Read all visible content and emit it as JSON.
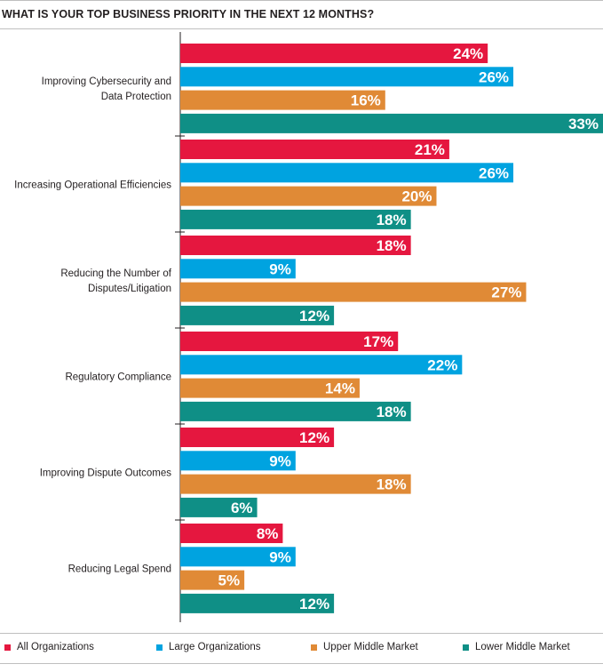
{
  "chart_data": {
    "type": "bar",
    "orientation": "horizontal",
    "title": "WHAT IS YOUR TOP BUSINESS PRIORITY IN THE NEXT 12 MONTHS?",
    "categories": [
      [
        "Improving Cybersecurity and",
        "Data Protection"
      ],
      [
        "Increasing Operational Efficiencies"
      ],
      [
        "Reducing the Number of",
        "Disputes/Litigation"
      ],
      [
        "Regulatory Compliance"
      ],
      [
        "Improving Dispute Outcomes"
      ],
      [
        "Reducing Legal Spend"
      ]
    ],
    "series": [
      {
        "name": "All Organizations",
        "color": "#e5173f",
        "values": [
          24,
          21,
          18,
          17,
          12,
          8
        ]
      },
      {
        "name": "Large Organizations",
        "color": "#00a3e0",
        "values": [
          26,
          26,
          9,
          22,
          9,
          9
        ]
      },
      {
        "name": "Upper Middle Market",
        "color": "#e08a36",
        "values": [
          16,
          20,
          27,
          14,
          18,
          5
        ]
      },
      {
        "name": "Lower Middle Market",
        "color": "#0f8f86",
        "values": [
          33,
          18,
          12,
          18,
          6,
          12
        ]
      }
    ],
    "value_suffix": "%",
    "xlim": [
      0,
      33
    ],
    "legend_position": "bottom"
  }
}
